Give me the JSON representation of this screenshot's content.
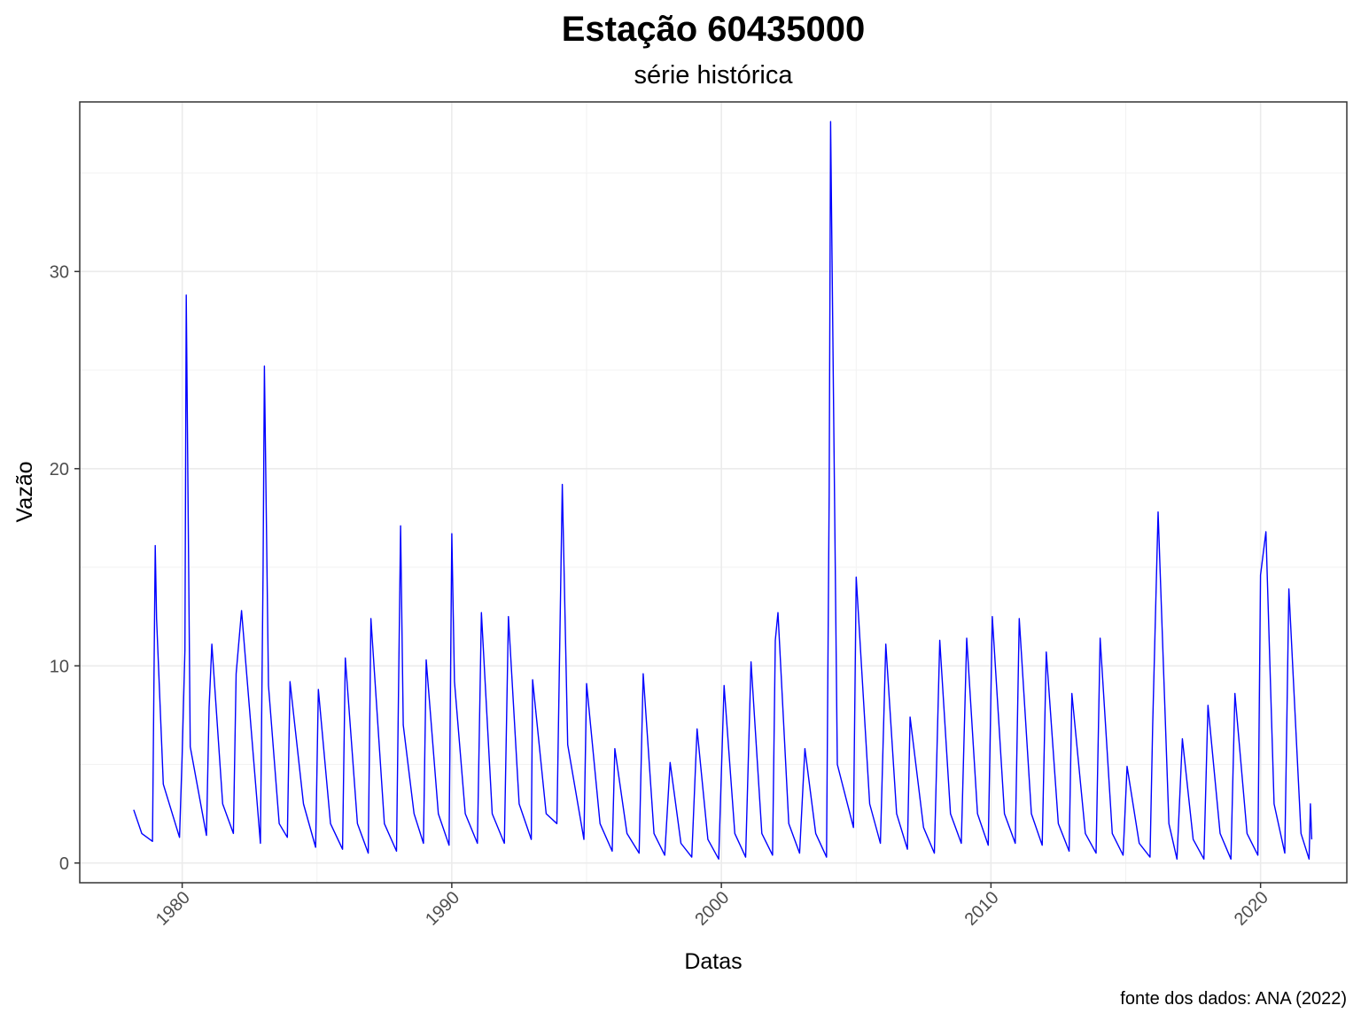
{
  "chart_data": {
    "type": "line",
    "title": "Estação 60435000",
    "subtitle": "série histórica",
    "xlabel": "Datas",
    "ylabel": "Vazão",
    "caption": "fonte dos dados: ANA (2022)",
    "xlim": [
      1976.2,
      2023.2
    ],
    "ylim": [
      -1.0,
      38.6
    ],
    "x_ticks": [
      1980,
      1990,
      2000,
      2010,
      2020
    ],
    "x_tick_labels": [
      "1980",
      "1990",
      "2000",
      "2010",
      "2020"
    ],
    "y_ticks": [
      0,
      10,
      20,
      30
    ],
    "y_tick_labels": [
      "0",
      "10",
      "20",
      "30"
    ],
    "grid": true,
    "legend": "none",
    "series": [
      {
        "color": "#0000ff",
        "x": [
          1978.2,
          1978.5,
          1978.9,
          1978.95,
          1979.0,
          1979.05,
          1979.3,
          1979.9,
          1980.0,
          1980.1,
          1980.15,
          1980.3,
          1980.9,
          1981.0,
          1981.1,
          1981.5,
          1981.9,
          1982.0,
          1982.2,
          1982.9,
          1983.0,
          1983.05,
          1983.2,
          1983.6,
          1983.9,
          1984.0,
          1984.5,
          1984.95,
          1985.05,
          1985.5,
          1985.95,
          1986.05,
          1986.5,
          1986.9,
          1987.0,
          1987.5,
          1987.95,
          1988.1,
          1988.2,
          1988.6,
          1988.95,
          1989.05,
          1989.5,
          1989.9,
          1990.0,
          1990.1,
          1990.5,
          1990.95,
          1991.1,
          1991.5,
          1991.95,
          1992.1,
          1992.5,
          1992.95,
          1993.0,
          1993.5,
          1993.9,
          1994.1,
          1994.3,
          1994.9,
          1995.0,
          1995.5,
          1995.95,
          1996.05,
          1996.5,
          1996.95,
          1997.1,
          1997.5,
          1997.9,
          1998.1,
          1998.5,
          1998.9,
          1999.1,
          1999.5,
          1999.9,
          2000.1,
          2000.5,
          2000.9,
          2001.1,
          2001.5,
          2001.9,
          2002.0,
          2002.1,
          2002.5,
          2002.9,
          2003.1,
          2003.5,
          2003.9,
          2004.0,
          2004.05,
          2004.3,
          2004.9,
          2005.0,
          2005.5,
          2005.9,
          2006.1,
          2006.5,
          2006.9,
          2007.0,
          2007.5,
          2007.9,
          2008.1,
          2008.5,
          2008.9,
          2009.1,
          2009.5,
          2009.9,
          2010.05,
          2010.5,
          2010.9,
          2011.05,
          2011.5,
          2011.9,
          2012.05,
          2012.5,
          2012.9,
          2013.0,
          2013.5,
          2013.9,
          2014.05,
          2014.5,
          2014.9,
          2015.05,
          2015.5,
          2015.9,
          2016.0,
          2016.2,
          2016.6,
          2016.9,
          2017.1,
          2017.5,
          2017.9,
          2018.05,
          2018.5,
          2018.9,
          2019.05,
          2019.5,
          2019.9,
          2020.0,
          2020.2,
          2020.5,
          2020.9,
          2021.05,
          2021.5,
          2021.8,
          2021.85,
          2021.9
        ],
        "y": [
          2.7,
          1.5,
          1.1,
          9.0,
          16.1,
          12.4,
          4.0,
          1.3,
          5.5,
          10.8,
          28.8,
          5.9,
          1.4,
          7.9,
          11.1,
          3.0,
          1.5,
          9.6,
          12.8,
          1.0,
          14.8,
          25.2,
          9.0,
          2.0,
          1.3,
          9.2,
          3.0,
          0.8,
          8.8,
          2.0,
          0.7,
          10.4,
          2.0,
          0.5,
          12.4,
          2.0,
          0.6,
          17.1,
          7.0,
          2.5,
          1.0,
          10.3,
          2.5,
          0.9,
          16.7,
          9.2,
          2.5,
          1.0,
          12.7,
          2.5,
          1.0,
          12.5,
          3.0,
          1.2,
          9.3,
          2.5,
          2.0,
          19.2,
          6.0,
          1.2,
          9.1,
          2.0,
          0.6,
          5.8,
          1.5,
          0.5,
          9.6,
          1.5,
          0.4,
          5.1,
          1.0,
          0.3,
          6.8,
          1.2,
          0.2,
          9.0,
          1.5,
          0.3,
          10.2,
          1.5,
          0.4,
          11.3,
          12.7,
          2.0,
          0.5,
          5.8,
          1.5,
          0.3,
          18.8,
          37.6,
          5.0,
          1.8,
          14.5,
          3.0,
          1.0,
          11.1,
          2.5,
          0.7,
          7.4,
          1.8,
          0.5,
          11.3,
          2.5,
          1.0,
          11.4,
          2.5,
          0.9,
          12.5,
          2.5,
          1.0,
          12.4,
          2.5,
          0.9,
          10.7,
          2.0,
          0.6,
          8.6,
          1.5,
          0.5,
          11.4,
          1.5,
          0.4,
          4.9,
          1.0,
          0.3,
          7.0,
          17.8,
          2.0,
          0.2,
          6.3,
          1.2,
          0.2,
          8.0,
          1.5,
          0.2,
          8.6,
          1.5,
          0.4,
          14.6,
          16.8,
          3.0,
          0.5,
          13.9,
          1.5,
          0.2,
          3.0,
          1.2
        ]
      }
    ]
  }
}
